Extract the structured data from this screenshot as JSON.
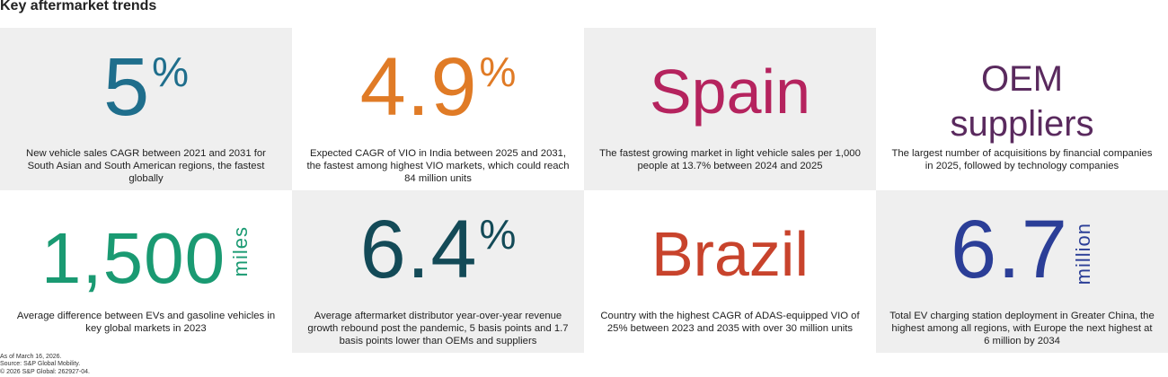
{
  "title": "Key aftermarket trends",
  "tiles": [
    {
      "value": "5",
      "suffix": "%",
      "color": "#1f6e8c",
      "description": "New vehicle sales CAGR between 2021 and 2031 for South Asian and South American regions, the fastest globally"
    },
    {
      "value": "4.9",
      "suffix": "%",
      "color": "#e07b26",
      "description": "Expected CAGR of VIO in India between 2025 and 2031, the fastest among highest VIO markets, which could reach 84 million units"
    },
    {
      "value": "Spain",
      "suffix": "",
      "color": "#b5235e",
      "description": "The fastest growing market in light vehicle sales per 1,000 people at 13.7% between 2024 and 2025"
    },
    {
      "value_line1": "OEM",
      "value_line2": "suppliers",
      "color": "#5a2a5e",
      "description": "The largest number of acquisitions by financial companies in 2025, followed by technology companies"
    },
    {
      "value": "1,500",
      "unit": "miles",
      "color": "#1a9a72",
      "description": "Average difference between EVs and gasoline vehicles in key global markets in 2023"
    },
    {
      "value": "6.4",
      "suffix": "%",
      "color": "#134a57",
      "description": "Average aftermarket distributor year-over-year revenue growth rebound post the pandemic, 5 basis points and 1.7 basis points lower than OEMs and suppliers"
    },
    {
      "value": "Brazil",
      "suffix": "",
      "color": "#c8432c",
      "description": "Country with the highest CAGR of ADAS-equipped VIO of 25% between 2023 and 2035 with over 30 million units"
    },
    {
      "value": "6.7",
      "unit": "million",
      "color": "#2b3e97",
      "description": "Total EV charging station deployment in Greater China, the highest among all regions, with Europe the next highest at 6 million by 2034"
    }
  ],
  "footer": {
    "line1": "As of March 16, 2026.",
    "line2": "Source: S&P Global Mobility.",
    "line3": "© 2026 S&P Global: 262927-04."
  }
}
